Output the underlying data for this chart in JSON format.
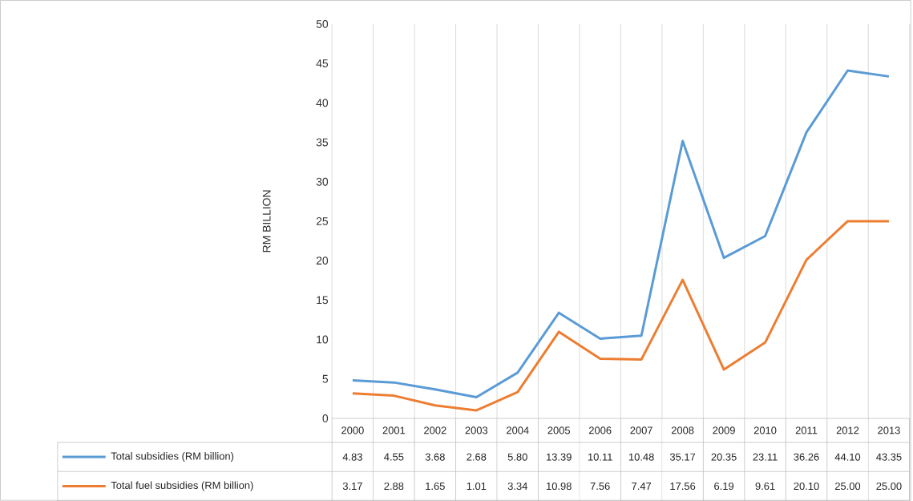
{
  "chart_data": {
    "type": "line",
    "ylabel": "RM BILLION",
    "categories": [
      "2000",
      "2001",
      "2002",
      "2003",
      "2004",
      "2005",
      "2006",
      "2007",
      "2008",
      "2009",
      "2010",
      "2011",
      "2012",
      "2013"
    ],
    "series": [
      {
        "name": "Total subsidies (RM billion)",
        "color": "#5b9bd5",
        "values": [
          4.83,
          4.55,
          3.68,
          2.68,
          5.8,
          13.39,
          10.11,
          10.48,
          35.17,
          20.35,
          23.11,
          36.26,
          44.1,
          43.35
        ],
        "value_labels": [
          "4.83",
          "4.55",
          "3.68",
          "2.68",
          "5.80",
          "13.39",
          "10.11",
          "10.48",
          "35.17",
          "20.35",
          "23.11",
          "36.26",
          "44.10",
          "43.35"
        ]
      },
      {
        "name": "Total fuel subsidies (RM billion)",
        "color": "#ed7d31",
        "values": [
          3.17,
          2.88,
          1.65,
          1.01,
          3.34,
          10.98,
          7.56,
          7.47,
          17.56,
          6.19,
          9.61,
          20.1,
          25.0,
          25.0
        ],
        "value_labels": [
          "3.17",
          "2.88",
          "1.65",
          "1.01",
          "3.34",
          "10.98",
          "7.56",
          "7.47",
          "17.56",
          "6.19",
          "9.61",
          "20.10",
          "25.00",
          "25.00"
        ]
      }
    ],
    "ylim": [
      0,
      50
    ],
    "yticks": [
      0,
      5,
      10,
      15,
      20,
      25,
      30,
      35,
      40,
      45,
      50
    ],
    "grid": "x",
    "legend": "bottom",
    "marker": "none",
    "line_style": "solid"
  }
}
